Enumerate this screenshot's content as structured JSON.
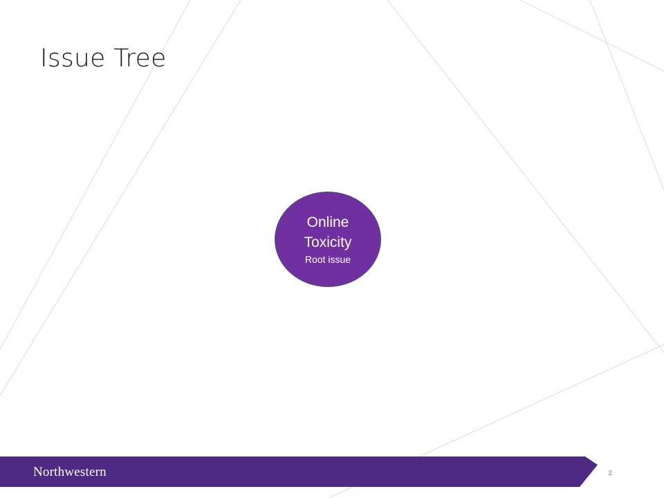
{
  "slide": {
    "title": "Issue Tree",
    "page_number": "2"
  },
  "root_node": {
    "title_line1": "Online",
    "title_line2": "Toxicity",
    "subtitle": "Root issue"
  },
  "footer": {
    "brand": "Northwestern"
  },
  "colors": {
    "node_fill": "#7030a0",
    "node_border": "#3b4f85",
    "footer_band": "#4e2a84",
    "background_lines": "#d9d9d9"
  }
}
